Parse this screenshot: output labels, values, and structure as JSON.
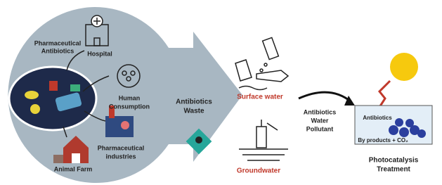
{
  "source": {
    "label": [
      "Pharmaceutical",
      "Antibiotics"
    ]
  },
  "hospital": {
    "label": [
      "Hospital"
    ]
  },
  "human": {
    "label": [
      "Human",
      "Consumption"
    ]
  },
  "industries": {
    "label": [
      "Pharmaceutical",
      "industries"
    ]
  },
  "farm": {
    "label": [
      "Animal Farm"
    ]
  },
  "waste": {
    "label": [
      "Antibiotics",
      "Waste"
    ]
  },
  "surface": {
    "label": [
      "Surface water"
    ]
  },
  "ground": {
    "label": [
      "Groundwater"
    ]
  },
  "pollutant": {
    "label": [
      "Antibiotics",
      "Water",
      "Pollutant"
    ]
  },
  "treatment": {
    "inner": [
      "Antibiotics",
      "By products + CO₂"
    ],
    "label": [
      "Photocatalysis",
      "Treatment"
    ]
  }
}
